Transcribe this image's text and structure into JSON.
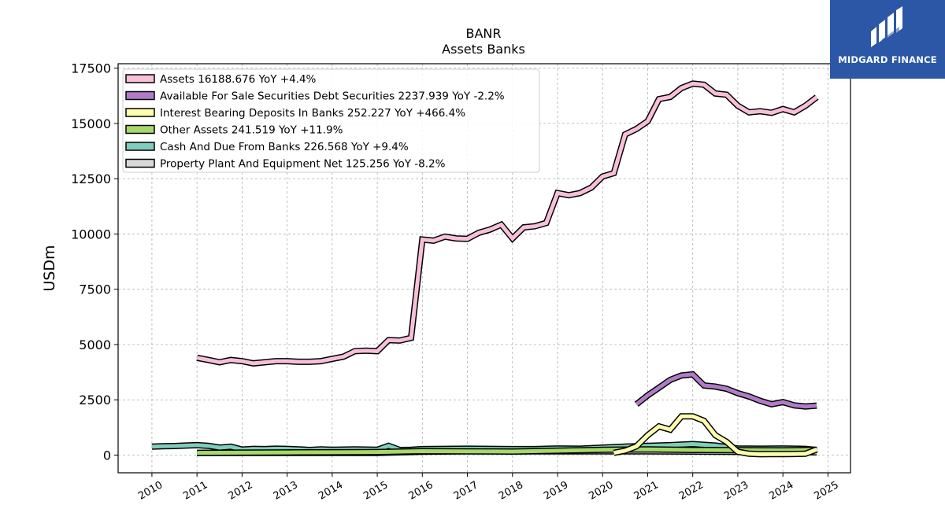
{
  "brand": {
    "name": "MIDGARD FINANCE",
    "color": "#2b57a6"
  },
  "chart_data": {
    "type": "line",
    "title": "BANR",
    "subtitle": "Assets Banks",
    "xlabel": "",
    "ylabel": "USDm",
    "xlim": [
      2009.25,
      2025.5
    ],
    "ylim": [
      -800,
      17700
    ],
    "yticks": [
      0,
      2500,
      5000,
      7500,
      10000,
      12500,
      15000,
      17500
    ],
    "xticks": [
      2010,
      2011,
      2012,
      2013,
      2014,
      2015,
      2016,
      2017,
      2018,
      2019,
      2020,
      2021,
      2022,
      2023,
      2024,
      2025
    ],
    "grid": true,
    "legend_position": "top-left",
    "series": [
      {
        "name": "Assets",
        "legend": "Assets  16188.676 YoY +4.4%",
        "color": "#f7c0d8",
        "x": [
          2011.0,
          2011.25,
          2011.5,
          2011.75,
          2012.0,
          2012.25,
          2012.5,
          2012.75,
          2013.0,
          2013.25,
          2013.5,
          2013.75,
          2014.0,
          2014.25,
          2014.5,
          2014.75,
          2015.0,
          2015.25,
          2015.5,
          2015.75,
          2016.0,
          2016.25,
          2016.5,
          2016.75,
          2017.0,
          2017.25,
          2017.5,
          2017.75,
          2018.0,
          2018.25,
          2018.5,
          2018.75,
          2019.0,
          2019.25,
          2019.5,
          2019.75,
          2020.0,
          2020.25,
          2020.5,
          2020.75,
          2021.0,
          2021.25,
          2021.5,
          2021.75,
          2022.0,
          2022.25,
          2022.5,
          2022.75,
          2023.0,
          2023.25,
          2023.5,
          2023.75,
          2024.0,
          2024.25,
          2024.5,
          2024.75
        ],
        "y": [
          4400,
          4300,
          4200,
          4300,
          4250,
          4150,
          4200,
          4250,
          4250,
          4220,
          4220,
          4250,
          4350,
          4450,
          4700,
          4720,
          4700,
          5200,
          5180,
          5300,
          9750,
          9700,
          9880,
          9800,
          9780,
          10050,
          10200,
          10420,
          9800,
          10300,
          10350,
          10500,
          11850,
          11750,
          11850,
          12100,
          12600,
          12750,
          14500,
          14750,
          15100,
          16100,
          16200,
          16600,
          16800,
          16750,
          16350,
          16300,
          15800,
          15500,
          15550,
          15480,
          15650,
          15500,
          15800,
          16189
        ]
      },
      {
        "name": "Available For Sale Securities Debt Securities",
        "legend": "Available For Sale Securities Debt Securities  2237.939 YoY -2.2%",
        "color": "#b07cc6",
        "x": [
          2020.75,
          2021.0,
          2021.25,
          2021.5,
          2021.75,
          2022.0,
          2022.25,
          2022.5,
          2022.75,
          2023.0,
          2023.25,
          2023.5,
          2023.75,
          2024.0,
          2024.25,
          2024.5,
          2024.75
        ],
        "y": [
          2300,
          2700,
          3050,
          3400,
          3600,
          3650,
          3150,
          3100,
          3000,
          2800,
          2650,
          2450,
          2300,
          2400,
          2250,
          2200,
          2238
        ]
      },
      {
        "name": "Interest Bearing Deposits In Banks",
        "legend": "Interest Bearing Deposits In Banks  252.227 YoY +466.4%",
        "color": "#fdfdb0",
        "x": [
          2020.25,
          2020.5,
          2020.75,
          2021.0,
          2021.25,
          2021.5,
          2021.75,
          2022.0,
          2022.25,
          2022.5,
          2022.75,
          2023.0,
          2023.25,
          2023.5,
          2023.75,
          2024.0,
          2024.25,
          2024.5,
          2024.75
        ],
        "y": [
          100,
          200,
          400,
          900,
          1300,
          1150,
          1750,
          1750,
          1550,
          900,
          600,
          150,
          60,
          40,
          45,
          45,
          50,
          60,
          252
        ]
      },
      {
        "name": "Other Assets",
        "legend": "Other Assets  241.519 YoY +11.9%",
        "color": "#a6d86a",
        "x": [
          2011.0,
          2012.0,
          2013.0,
          2014.0,
          2015.0,
          2016.0,
          2017.0,
          2018.0,
          2019.0,
          2020.0,
          2021.0,
          2022.0,
          2023.0,
          2024.0,
          2024.75
        ],
        "y": [
          100,
          110,
          120,
          130,
          140,
          180,
          170,
          160,
          200,
          240,
          260,
          230,
          220,
          215,
          242
        ]
      },
      {
        "name": "Cash And Due From Banks",
        "legend": "Cash And Due From Banks  226.568 YoY +9.4%",
        "color": "#7fcdbb",
        "x": [
          2010.0,
          2010.25,
          2010.5,
          2010.75,
          2011.0,
          2011.25,
          2011.5,
          2011.75,
          2012.0,
          2012.25,
          2012.5,
          2012.75,
          2013.0,
          2013.25,
          2013.5,
          2013.75,
          2014.0,
          2014.25,
          2014.5,
          2014.75,
          2015.0,
          2015.25,
          2015.5,
          2015.75,
          2016.0,
          2016.5,
          2017.0,
          2017.5,
          2018.0,
          2018.5,
          2019.0,
          2019.5,
          2020.0,
          2020.5,
          2021.0,
          2021.5,
          2022.0,
          2022.5,
          2023.0,
          2023.5,
          2024.0,
          2024.5,
          2024.75
        ],
        "y": [
          380,
          400,
          410,
          430,
          450,
          420,
          340,
          380,
          250,
          280,
          270,
          290,
          280,
          260,
          230,
          260,
          240,
          250,
          260,
          250,
          240,
          420,
          230,
          240,
          270,
          280,
          290,
          280,
          270,
          270,
          300,
          290,
          340,
          380,
          420,
          450,
          500,
          430,
          300,
          290,
          300,
          280,
          227
        ]
      },
      {
        "name": "Property Plant And Equipment Net",
        "legend": "Property Plant And Equipment Net  125.256 YoY -8.2%",
        "color": "#d9d9d9",
        "x": [
          2011.0,
          2012.0,
          2013.0,
          2014.0,
          2015.0,
          2016.0,
          2017.0,
          2018.0,
          2019.0,
          2020.0,
          2021.0,
          2022.0,
          2023.0,
          2024.0,
          2024.75
        ],
        "y": [
          100,
          100,
          95,
          95,
          100,
          150,
          175,
          170,
          170,
          170,
          170,
          160,
          145,
          135,
          125
        ]
      }
    ]
  }
}
